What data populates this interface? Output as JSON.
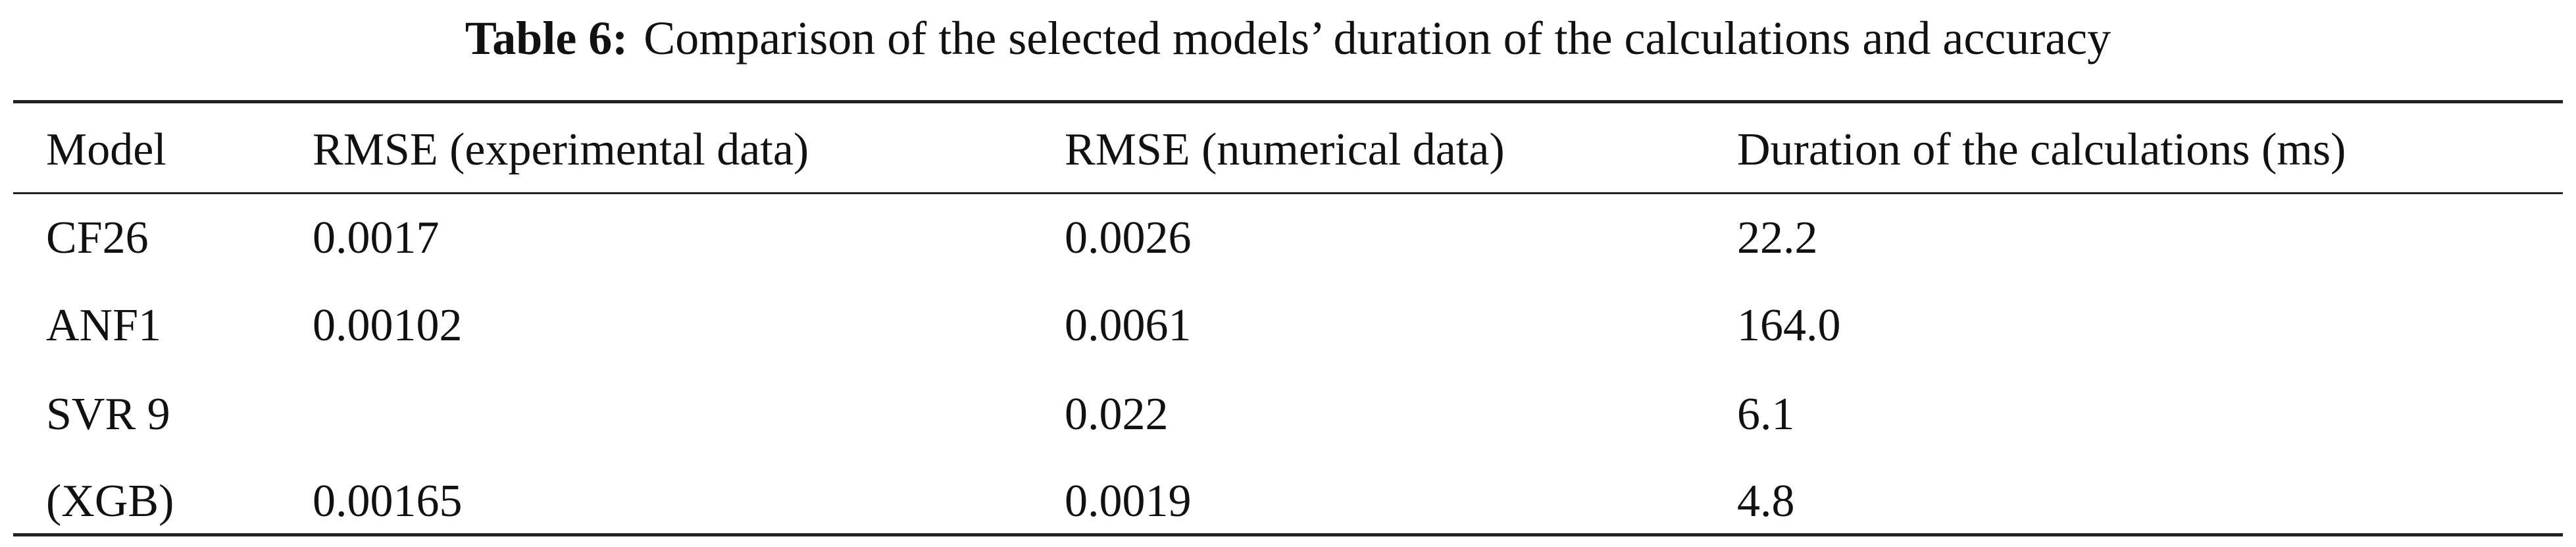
{
  "caption": {
    "label": "Table 6:",
    "text": "Comparison of the selected models’ duration of the calculations and accuracy"
  },
  "table": {
    "header": [
      "Model",
      "RMSE (experimental data)",
      "RMSE (numerical data)",
      "Duration of the calculations (ms)"
    ],
    "rows": [
      [
        "CF26",
        "0.0017",
        "0.0026",
        "22.2"
      ],
      [
        "ANF1",
        "0.00102",
        "0.0061",
        "164.0"
      ],
      [
        "SVR 9",
        null,
        "0.022",
        "6.1"
      ],
      [
        "(XGB)",
        "0.00165",
        "0.0019",
        "4.8"
      ]
    ]
  }
}
